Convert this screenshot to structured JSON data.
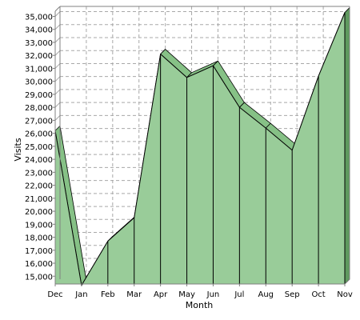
{
  "chart_data": {
    "type": "area",
    "xlabel": "Month",
    "ylabel": "Visits",
    "categories": [
      "Dec",
      "Jan",
      "Feb",
      "Mar",
      "Apr",
      "May",
      "Jun",
      "Jul",
      "Aug",
      "Sep",
      "Oct",
      "Nov"
    ],
    "values": [
      26200,
      14300,
      17700,
      19500,
      32100,
      30300,
      31200,
      28000,
      26400,
      24700,
      30400,
      35300
    ],
    "yticks": [
      15000,
      16000,
      17000,
      18000,
      19000,
      20000,
      21000,
      22000,
      23000,
      24000,
      25000,
      26000,
      27000,
      28000,
      29000,
      30000,
      31000,
      32000,
      33000,
      34000,
      35000
    ],
    "ytick_labels": [
      "15,000",
      "16,000",
      "17,000",
      "18,000",
      "19,000",
      "20,000",
      "21,000",
      "22,000",
      "23,000",
      "24,000",
      "25,000",
      "26,000",
      "27,000",
      "28,000",
      "29,000",
      "30,000",
      "31,000",
      "32,000",
      "33,000",
      "34,000",
      "35,000"
    ],
    "ylim": [
      14400,
      35400
    ],
    "grid": true,
    "legend": "none",
    "colors": {
      "fill": "#99cc99",
      "top": "#86c186",
      "side": "#5f9a5f",
      "stroke": "#000000",
      "grid": "#a8a8a8",
      "frame": "#808080"
    }
  }
}
